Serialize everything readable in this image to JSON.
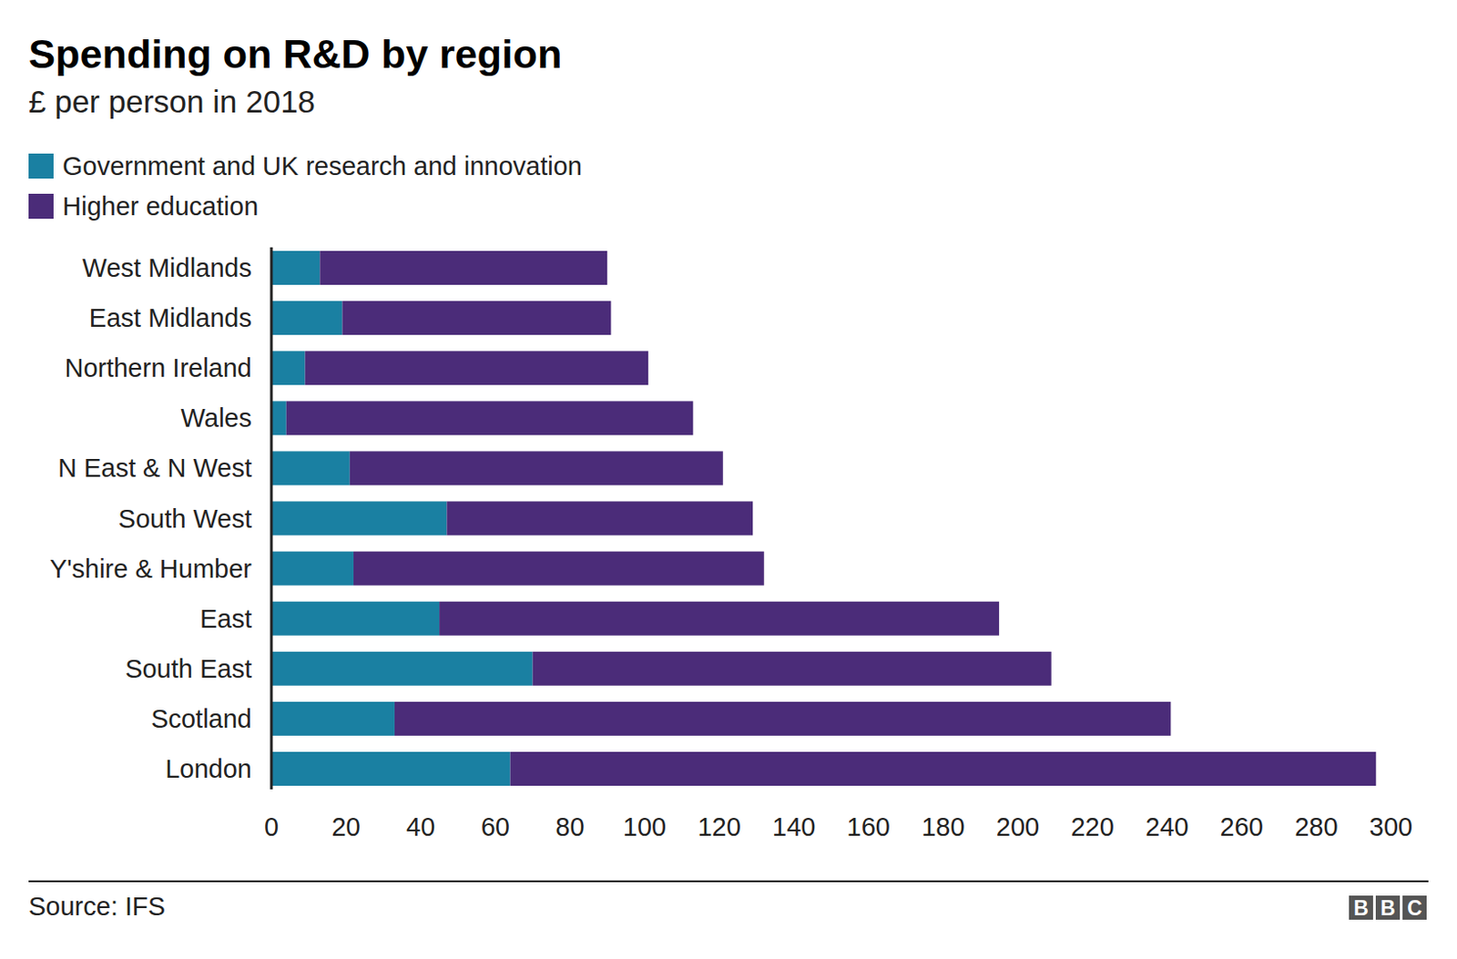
{
  "chart_data": {
    "type": "bar",
    "title": "Spending on R&D by region",
    "subtitle": "£ per person in 2018",
    "orientation": "horizontal",
    "stacked": true,
    "legend": "top-left",
    "grid": false,
    "categories": [
      "West Midlands",
      "East Midlands",
      "Northern Ireland",
      "Wales",
      "N East & N West",
      "South West",
      "Y'shire & Humber",
      "East",
      "South East",
      "Scotland",
      "London"
    ],
    "series": [
      {
        "name": "Government and UK research and innovation",
        "color": "#1a80a2",
        "values": [
          13,
          19,
          9,
          4,
          21,
          47,
          22,
          45,
          70,
          33,
          64
        ]
      },
      {
        "name": "Higher education",
        "color": "#4b2c79",
        "values": [
          77,
          72,
          92,
          109,
          100,
          82,
          110,
          150,
          139,
          208,
          232
        ]
      }
    ],
    "xlim": [
      0,
      300
    ],
    "xticks": [
      0,
      20,
      40,
      60,
      80,
      100,
      120,
      140,
      160,
      180,
      200,
      220,
      240,
      260,
      280,
      300
    ],
    "source": "Source: IFS",
    "logo": "BBC"
  }
}
